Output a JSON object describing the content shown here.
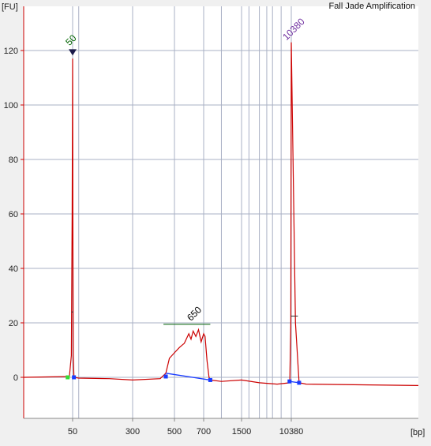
{
  "chart_data": {
    "type": "line",
    "title": "Fall Jade Amplification",
    "ylabel": "[FU]",
    "xlabel": "[bp]",
    "ylim": [
      -15,
      135
    ],
    "y_ticks": [
      0,
      20,
      40,
      60,
      80,
      100,
      120
    ],
    "x_tick_labels": [
      "50",
      "300",
      "500",
      "700",
      "1500",
      "10380"
    ],
    "x_scale": "log-like (size standard spacing)",
    "grid": true,
    "series": [
      {
        "color": "#cc0000",
        "x": [
          "<50",
          "50",
          "50",
          "60",
          "150",
          "300",
          "420",
          "450",
          "500",
          "550",
          "600",
          "650",
          "700",
          "750",
          "800",
          "1000",
          "1500",
          "3000",
          "6000",
          "10000",
          "10380",
          "10700",
          "11000",
          ">11000"
        ],
        "y": [
          0,
          0,
          117,
          0,
          -0.5,
          -1,
          -0.5,
          1,
          9,
          12,
          16,
          17,
          16,
          6,
          -1,
          -1.5,
          -1,
          -2,
          -2.5,
          -2,
          123,
          -2,
          -2.5,
          -3
        ]
      }
    ],
    "peaks": [
      {
        "label": "50",
        "color": "#006400",
        "height_fu": 117
      },
      {
        "label": "650",
        "color": "#000000",
        "height_fu": 17
      },
      {
        "label": "10380",
        "color": "#7030a0",
        "height_fu": 123
      }
    ],
    "region_650": {
      "start_bp": 450,
      "end_bp": 800,
      "baseline_height_fu": 19.5
    }
  }
}
